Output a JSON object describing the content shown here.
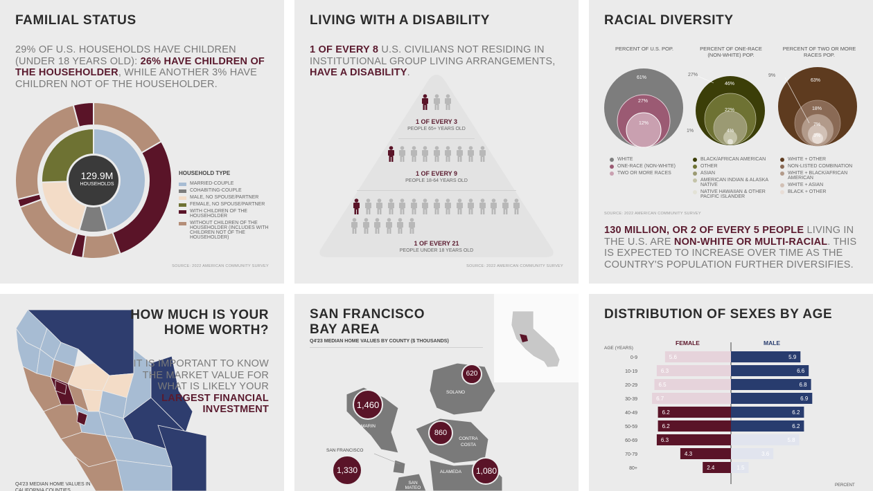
{
  "familial": {
    "title": "FAMILIAL STATUS",
    "lead_a": "29% OF U.S. HOUSEHOLDS HAVE CHILDREN (UNDER 18 YEARS OLD): ",
    "lead_b": "26% HAVE CHILDREN OF THE HOUSEHOLDER",
    "lead_c": ", WHILE ANOTHER 3% HAVE CHILDREN NOT OF THE HOUSEHOLDER.",
    "center_value": "129.9M",
    "center_label": "HOUSEHOLDS",
    "legend_title": "HOUSEHOLD TYPE",
    "legend": [
      {
        "label": "MARRIED-COUPLE",
        "color": "#a7bcd3"
      },
      {
        "label": "COHABITING-COUPLE",
        "color": "#7d7d7d"
      },
      {
        "label": "MALE, NO SPOUSE/PARTNER",
        "color": "#f3dcc7"
      },
      {
        "label": "FEMALE, NO SPOUSE/PARTNER",
        "color": "#6e7233"
      },
      {
        "label": "WITH CHILDREN OF THE HOUSEHOLDER",
        "color": "#5a1428"
      },
      {
        "label": "WITHOUT CHILDREN OF THE HOUSEHOLDER (INCLUDES WITH CHILDREN NOT OF THE HOUSEHOLDER)",
        "color": "#b48e78"
      }
    ],
    "source": "SOURCE: 2022 AMERICAN COMMUNITY SURVEY"
  },
  "disability": {
    "title": "LIVING WITH A DISABILITY",
    "lead_a": "1 OF EVERY 8",
    "lead_b": " U.S. CIVILIANS NOT RESIDING IN INSTITUTIONAL GROUP LIVING ARRANGEMENTS, ",
    "lead_c": "HAVE A DISABILITY",
    "lead_d": ".",
    "groups": [
      {
        "ratio": "1 OF EVERY 3",
        "desc": "PEOPLE 65+ YEARS OLD",
        "total": 3
      },
      {
        "ratio": "1 OF EVERY 9",
        "desc": "PEOPLE 18-64 YEARS OLD",
        "total": 9
      },
      {
        "ratio": "1 OF EVERY 21",
        "desc": "PEOPLE UNDER 18 YEARS OLD",
        "total": 21
      }
    ],
    "source": "SOURCE: 2022 AMERICAN COMMUNITY SURVEY"
  },
  "racial": {
    "title": "RACIAL DIVERSITY",
    "col_headers": [
      "PERCENT OF U.S. POP.",
      "PERCENT OF ONE-RACE (NON-WHITE) POP.",
      "PERCENT OF TWO OR MORE RACES POP."
    ],
    "circle1": [
      "61%",
      "27%",
      "12%"
    ],
    "circle2": [
      "27%",
      "46%",
      "22%",
      "4%",
      "1%"
    ],
    "circle3": [
      "9%",
      "63%",
      "18%",
      "7%",
      "3%"
    ],
    "legend1": [
      {
        "label": "WHITE",
        "color": "#7d7d7d"
      },
      {
        "label": "ONE-RACE (NON-WHITE)",
        "color": "#9b5a73"
      },
      {
        "label": "TWO OR MORE RACES",
        "color": "#c9a0b0"
      }
    ],
    "legend2": [
      {
        "label": "BLACK/AFRICAN AMERICAN",
        "color": "#3b3e08"
      },
      {
        "label": "OTHER",
        "color": "#6e7233"
      },
      {
        "label": "ASIAN",
        "color": "#9b9a73"
      },
      {
        "label": "AMERICAN INDIAN & ALASKA NATIVE",
        "color": "#c4c3a8"
      },
      {
        "label": "NATIVE HAWAIIAN & OTHER PACIFIC ISLANDER",
        "color": "#e3e2d6"
      }
    ],
    "legend3": [
      {
        "label": "WHITE + OTHER",
        "color": "#5e3b1f"
      },
      {
        "label": "NON-LISTED COMBINATION",
        "color": "#8a6a55"
      },
      {
        "label": "WHITE + BLACK/AFRICAN AMERICAN",
        "color": "#b29a8a"
      },
      {
        "label": "WHITE + ASIAN",
        "color": "#d1c0b5"
      },
      {
        "label": "BLACK + OTHER",
        "color": "#e8ddd6"
      }
    ],
    "source": "SOURCE: 2022 AMERICAN COMMUNITY SURVEY",
    "lead_a": "130 MILLION, OR 2 OF EVERY 5 PEOPLE",
    "lead_b": " LIVING IN THE U.S. ARE ",
    "lead_c": "NON-WHITE OR MULTI-RACIAL",
    "lead_d": ". THIS IS EXPECTED TO INCREASE OVER TIME AS THE COUNTRY'S POPULATION FURTHER DIVERSIFIES."
  },
  "homeworth": {
    "title_line1": "HOW MUCH IS YOUR",
    "title_line2": "HOME WORTH?",
    "body_a": "IT IS IMPORTANT TO KNOW THE MARKET VALUE FOR WHAT IS LIKELY YOUR ",
    "body_b": "LARGEST FINANCIAL INVESTMENT",
    "caption": "Q4'23 MEDIAN HOME VALUES IN CALIFORNIA COUNTIES"
  },
  "bayarea": {
    "title_line1": "SAN FRANCISCO",
    "title_line2": "BAY AREA",
    "subtitle": "Q4'23 MEDIAN HOME VALUES BY COUNTY ($ THOUSANDS)",
    "counties": [
      {
        "name": "MARIN",
        "value": "1,460"
      },
      {
        "name": "SOLANO",
        "value": "620"
      },
      {
        "name": "CONTRA COSTA",
        "value": "860"
      },
      {
        "name": "SAN FRANCISCO",
        "value": "1,330"
      },
      {
        "name": "ALAMEDA",
        "value": "1,080"
      },
      {
        "name": "SAN MATEO",
        "value": ""
      }
    ]
  },
  "sexes": {
    "title": "DISTRIBUTION OF SEXES BY AGE",
    "age_label": "AGE (YEARS)",
    "female_label": "FEMALE",
    "male_label": "MALE",
    "footer": "PERCENT",
    "chart_data": {
      "type": "bar",
      "categories": [
        "0-9",
        "10-19",
        "20-29",
        "30-39",
        "40-49",
        "50-59",
        "60-69",
        "70-79",
        "80+"
      ],
      "series": [
        {
          "name": "FEMALE",
          "values": [
            5.6,
            6.3,
            6.5,
            6.7,
            6.2,
            6.2,
            6.3,
            4.3,
            2.4
          ]
        },
        {
          "name": "MALE",
          "values": [
            5.9,
            6.6,
            6.8,
            6.9,
            6.2,
            6.2,
            5.8,
            3.6,
            1.5
          ]
        }
      ],
      "colors": {
        "female_dark": "#5a1428",
        "female_light": "#e6d3db",
        "male_dark": "#283c6e",
        "male_light": "#e1e4ee"
      }
    }
  }
}
